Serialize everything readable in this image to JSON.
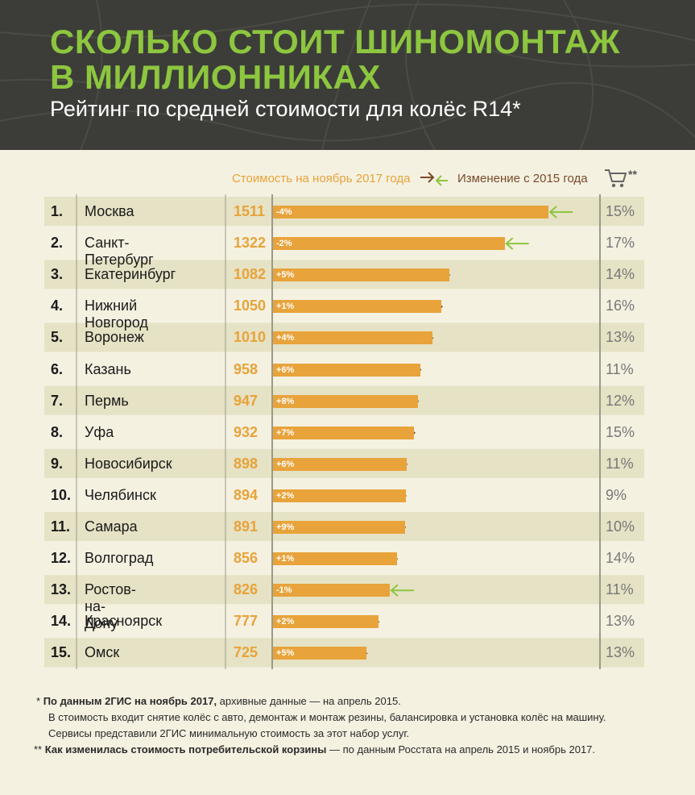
{
  "title_line1": "СКОЛЬКО СТОИТ ШИНОМОНТАЖ",
  "title_line2": "В МИЛЛИОННИКАХ",
  "subtitle": "Рейтинг по средней стоимости для колёс R14*",
  "legend": {
    "cost": "Стоимость на ноябрь 2017 года",
    "change": "Изменение с 2015 года",
    "cart_stars": "**"
  },
  "colors": {
    "bar": "#e8a33a",
    "up_arrow": "#7a4a2a",
    "down_arrow": "#8dc63f",
    "title": "#8dc63f"
  },
  "chart_data": {
    "type": "bar",
    "orientation": "horizontal",
    "categories": [
      "Москва",
      "Санкт-Петербург",
      "Екатеринбург",
      "Нижний Новгород",
      "Воронеж",
      "Казань",
      "Пермь",
      "Уфа",
      "Новосибирск",
      "Челябинск",
      "Самара",
      "Волгоград",
      "Ростов-на-Дону",
      "Красноярск",
      "Омск"
    ],
    "ranks": [
      "1.",
      "2.",
      "3.",
      "4.",
      "5.",
      "6.",
      "7.",
      "8.",
      "9.",
      "10.",
      "11.",
      "12.",
      "13.",
      "14.",
      "15."
    ],
    "values": [
      1511,
      1322,
      1082,
      1050,
      1010,
      958,
      947,
      932,
      898,
      894,
      891,
      856,
      826,
      777,
      725
    ],
    "change_labels": [
      "-4%",
      "-2%",
      "+5%",
      "+1%",
      "+4%",
      "+6%",
      "+8%",
      "+7%",
      "+6%",
      "+2%",
      "+9%",
      "+1%",
      "-1%",
      "+2%",
      "+5%"
    ],
    "change_dir": [
      "down",
      "down",
      "up",
      "up",
      "up",
      "up",
      "up",
      "up",
      "up",
      "up",
      "up",
      "up",
      "down",
      "up",
      "up"
    ],
    "basket_change": [
      "15%",
      "17%",
      "14%",
      "16%",
      "13%",
      "11%",
      "12%",
      "15%",
      "11%",
      "9%",
      "10%",
      "14%",
      "11%",
      "13%",
      "13%"
    ]
  },
  "footnotes": {
    "f1_mark": "*",
    "f1_bold": "По данным 2ГИС на ноябрь 2017,",
    "f1_rest": " архивные данные — на апрель 2015.",
    "f1_line2": "В стоимость входит снятие колёс с авто, демонтаж и монтаж резины, балансировка и установка колёс на машину.",
    "f1_line3": "Сервисы представили 2ГИС минимальную стоимость за этот набор услуг.",
    "f2_mark": "**",
    "f2_bold": "Как изменилась стоимость потребительской корзины",
    "f2_rest": " — по данным Росстата на апрель 2015 и ноябрь 2017."
  }
}
